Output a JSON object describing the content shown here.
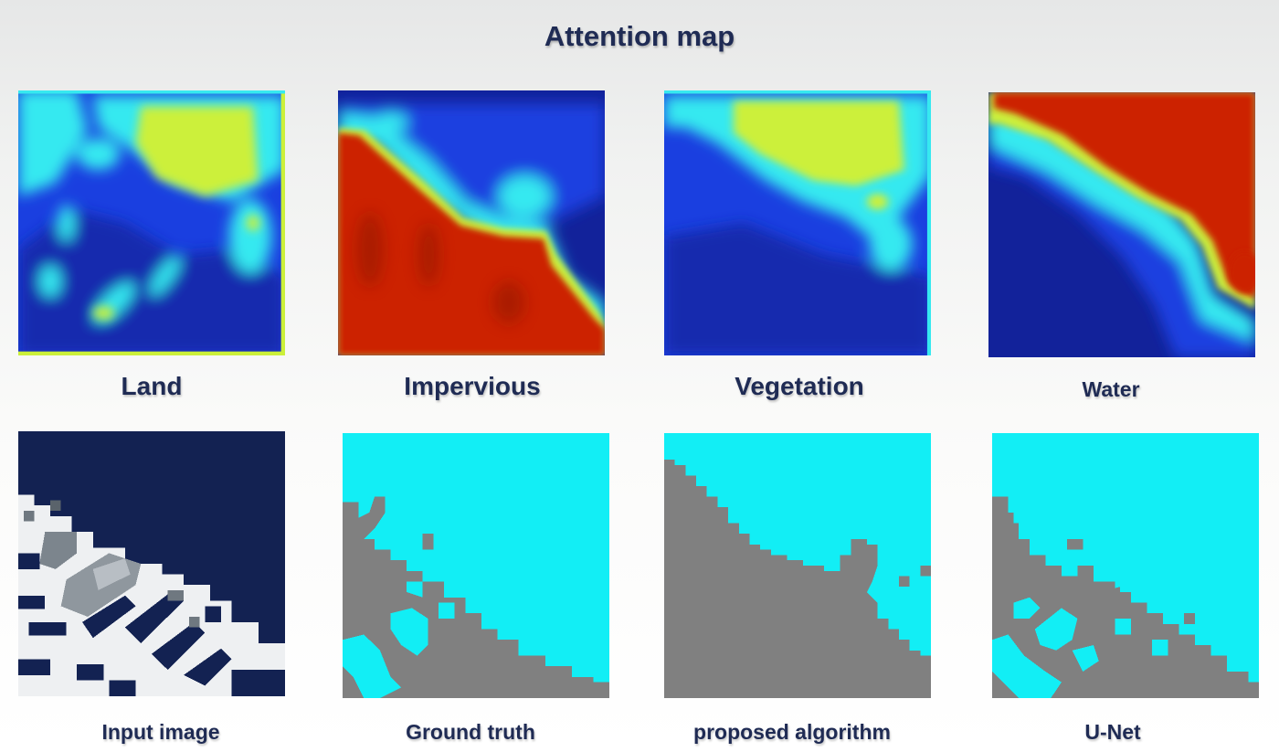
{
  "title": "Attention map",
  "attention_maps": [
    {
      "label": "Land"
    },
    {
      "label": "Impervious"
    },
    {
      "label": "Vegetation"
    },
    {
      "label": "Water"
    }
  ],
  "results": [
    {
      "label": "Input image"
    },
    {
      "label": "Ground truth"
    },
    {
      "label": "proposed algorithm"
    },
    {
      "label": "U-Net"
    }
  ],
  "colors": {
    "title_text": "#1f2b54",
    "jet_dark_blue": "#12229a",
    "jet_blue": "#1a3fe0",
    "jet_cyan": "#36e9f0",
    "jet_yellow": "#ccf03a",
    "jet_red": "#cc2000",
    "segment_water": "#12eef5",
    "segment_land": "#808080",
    "input_navy": "#132252"
  }
}
